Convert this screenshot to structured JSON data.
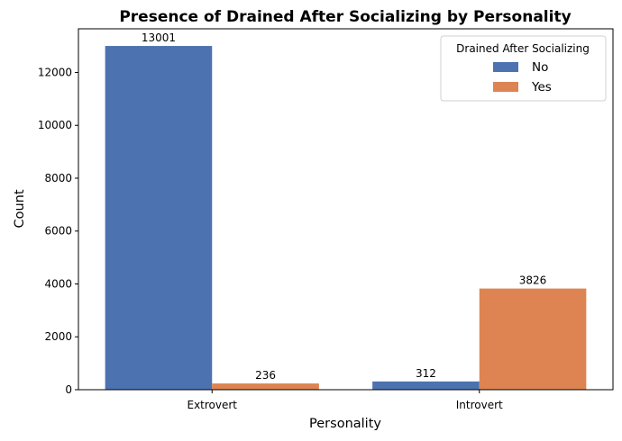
{
  "chart_data": {
    "type": "bar",
    "title": "Presence of Drained After Socializing by Personality",
    "xlabel": "Personality",
    "ylabel": "Count",
    "categories": [
      "Extrovert",
      "Introvert"
    ],
    "series": [
      {
        "name": "No",
        "values": [
          13001,
          312
        ],
        "color": "#4c72b0"
      },
      {
        "name": "Yes",
        "values": [
          236,
          3826
        ],
        "color": "#dd8452"
      }
    ],
    "ylim": [
      0,
      13650
    ],
    "yticks": [
      0,
      2000,
      4000,
      6000,
      8000,
      10000,
      12000
    ],
    "ytick_labels": [
      "0",
      "2000",
      "4000",
      "6000",
      "8000",
      "10000",
      "12000"
    ],
    "data_labels": [
      [
        "13001",
        "312"
      ],
      [
        "236",
        "3826"
      ]
    ],
    "grid": false,
    "legend": {
      "title": "Drained After Socializing",
      "placement": "top-right"
    }
  }
}
